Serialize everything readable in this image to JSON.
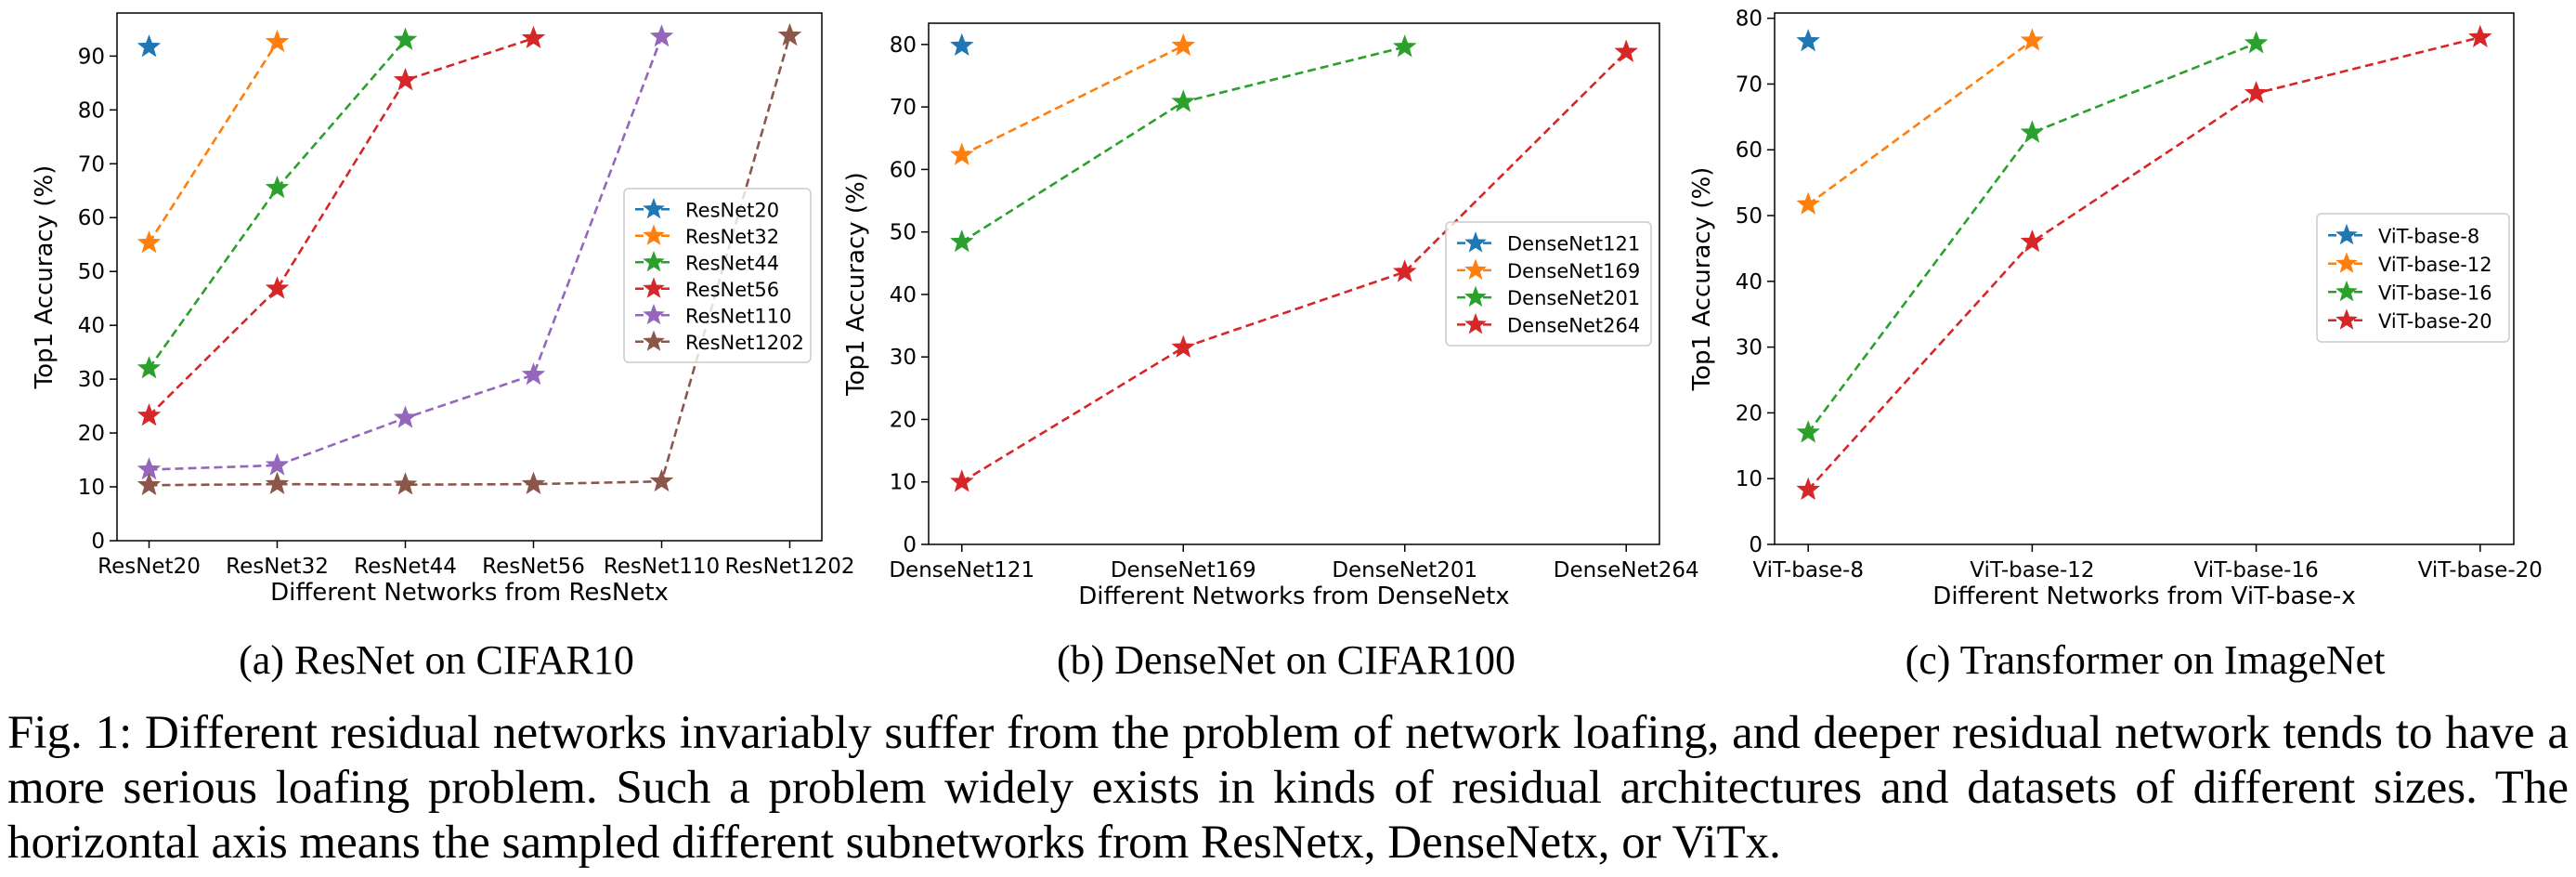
{
  "chart_data": [
    {
      "type": "line",
      "xlabel": "Different Networks from ResNetx",
      "ylabel": "Top1 Accuracy (%)",
      "caption": "(a) ResNet on CIFAR10",
      "categories": [
        "ResNet20",
        "ResNet32",
        "ResNet44",
        "ResNet56",
        "ResNet110",
        "ResNet1202"
      ],
      "ylim": [
        0,
        98
      ],
      "yticks": [
        0,
        10,
        20,
        30,
        40,
        50,
        60,
        70,
        80,
        90
      ],
      "legend": "center right",
      "grid": false,
      "series": [
        {
          "name": "ResNet20",
          "color": "#1f77b4",
          "values": [
            91.7,
            null,
            null,
            null,
            null,
            null
          ]
        },
        {
          "name": "ResNet32",
          "color": "#ff7f0e",
          "values": [
            55.3,
            92.6,
            null,
            null,
            null,
            null
          ]
        },
        {
          "name": "ResNet44",
          "color": "#2ca02c",
          "values": [
            32.0,
            65.5,
            93.0,
            null,
            null,
            null
          ]
        },
        {
          "name": "ResNet56",
          "color": "#d62728",
          "values": [
            23.2,
            46.8,
            85.5,
            93.3,
            null,
            null
          ]
        },
        {
          "name": "ResNet110",
          "color": "#9467bd",
          "values": [
            13.2,
            14.0,
            22.8,
            30.8,
            93.6,
            null
          ]
        },
        {
          "name": "ResNet1202",
          "color": "#8c564b",
          "values": [
            10.3,
            10.5,
            10.4,
            10.5,
            11.0,
            93.8
          ]
        }
      ]
    },
    {
      "type": "line",
      "xlabel": "Different Networks from DenseNetx",
      "ylabel": "Top1 Accuracy (%)",
      "caption": "(b) DenseNet on CIFAR100",
      "categories": [
        "DenseNet121",
        "DenseNet169",
        "DenseNet201",
        "DenseNet264"
      ],
      "ylim": [
        0,
        83.4
      ],
      "yticks": [
        0,
        10,
        20,
        30,
        40,
        50,
        60,
        70,
        80
      ],
      "legend": "center right",
      "grid": false,
      "series": [
        {
          "name": "DenseNet121",
          "color": "#1f77b4",
          "values": [
            79.8,
            null,
            null,
            null
          ]
        },
        {
          "name": "DenseNet169",
          "color": "#ff7f0e",
          "values": [
            62.3,
            79.8,
            null,
            null
          ]
        },
        {
          "name": "DenseNet201",
          "color": "#2ca02c",
          "values": [
            48.4,
            70.8,
            79.6,
            null
          ]
        },
        {
          "name": "DenseNet264",
          "color": "#d62728",
          "values": [
            10.0,
            31.5,
            43.6,
            78.8
          ]
        }
      ]
    },
    {
      "type": "line",
      "xlabel": "Different Networks from ViT-base-x",
      "ylabel": "Top1 Accuracy (%)",
      "caption": "(c) Transformer on ImageNet",
      "categories": [
        "ViT-base-8",
        "ViT-base-12",
        "ViT-base-16",
        "ViT-base-20"
      ],
      "ylim": [
        0,
        80.8
      ],
      "yticks": [
        0,
        10,
        20,
        30,
        40,
        50,
        60,
        70,
        80
      ],
      "legend": "center right",
      "grid": false,
      "series": [
        {
          "name": "ViT-base-8",
          "color": "#1f77b4",
          "values": [
            76.5,
            null,
            null,
            null
          ]
        },
        {
          "name": "ViT-base-12",
          "color": "#ff7f0e",
          "values": [
            51.7,
            76.6,
            null,
            null
          ]
        },
        {
          "name": "ViT-base-16",
          "color": "#2ca02c",
          "values": [
            17.0,
            62.6,
            76.2,
            null
          ]
        },
        {
          "name": "ViT-base-20",
          "color": "#d62728",
          "values": [
            8.3,
            46.0,
            68.6,
            77.1
          ]
        }
      ]
    }
  ],
  "figure_caption": "Fig. 1: Different residual networks invariably suffer from the problem of network loafing, and deeper residual network tends to have a more serious loafing problem. Such a problem widely exists in kinds of residual architectures and datasets of different sizes. The horizontal axis means the sampled different subnetworks from ResNetx, DenseNetx, or ViTx."
}
